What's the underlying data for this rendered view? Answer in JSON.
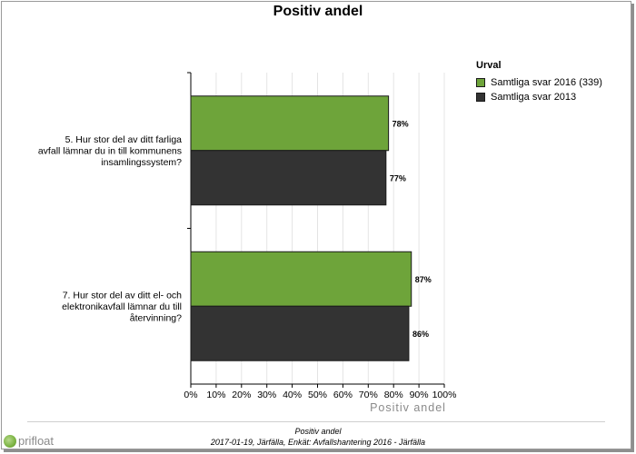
{
  "title": "Positiv andel",
  "chart_data": {
    "type": "bar",
    "orientation": "horizontal",
    "categories": [
      "5. Hur stor del av ditt farliga avfall lämnar du in till kommunens insamlingssystem?",
      "7. Hur stor del av ditt el- och elektronikavfall lämnar du till återvinning?"
    ],
    "category_lines": [
      [
        "5. Hur stor del av ditt farliga",
        "avfall lämnar du in till kommunens",
        "insamlingssystem?"
      ],
      [
        "7. Hur stor del av ditt el- och",
        "elektronikavfall lämnar du till",
        "återvinning?"
      ]
    ],
    "series": [
      {
        "name": "Samtliga svar 2016 (339)",
        "color": "#6ea43a",
        "values": [
          78,
          87
        ],
        "labels": [
          "78%",
          "87%"
        ]
      },
      {
        "name": "Samtliga svar 2013",
        "color": "#333333",
        "values": [
          77,
          86
        ],
        "labels": [
          "77%",
          "86%"
        ]
      }
    ],
    "xlim": [
      0,
      100
    ],
    "xticks": [
      "0%",
      "10%",
      "20%",
      "30%",
      "40%",
      "50%",
      "60%",
      "70%",
      "80%",
      "90%",
      "100%"
    ],
    "xlabel": "Positiv andel",
    "grid": "vertical",
    "legend_title": "Urval",
    "legend_position": "right"
  },
  "footer": {
    "line1": "Positiv andel",
    "line2": "2017-01-19, Järfälla, Enkät: Avfallshantering 2016 - Järfälla"
  },
  "logo": {
    "text": "prifloat"
  }
}
